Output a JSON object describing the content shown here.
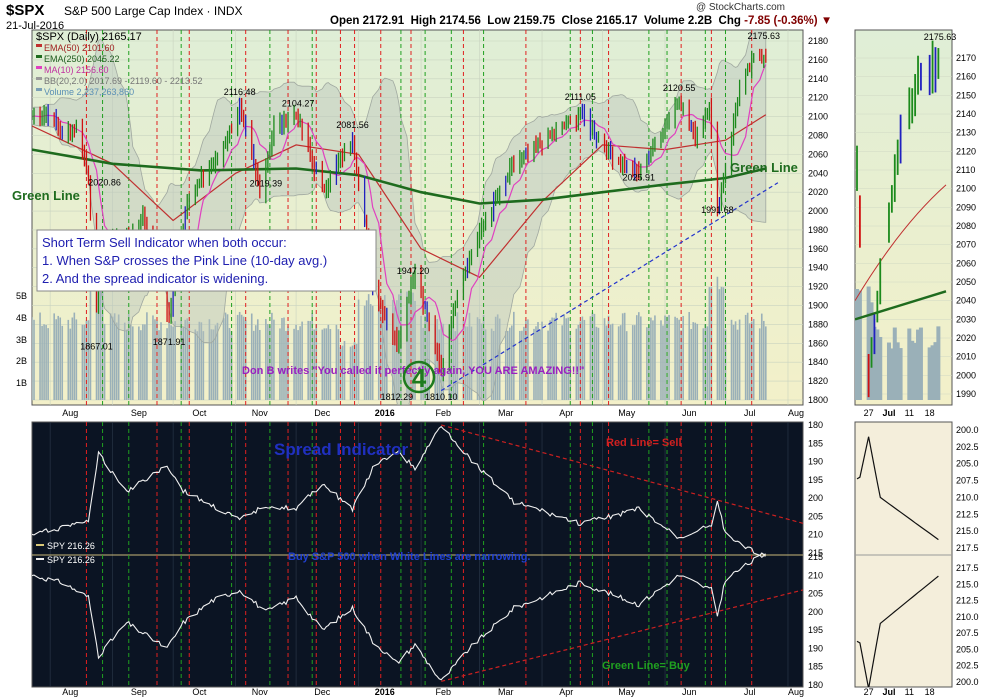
{
  "header": {
    "symbol": "$SPX",
    "name": "S&P 500 Large Cap Index",
    "exchange": "INDX",
    "date": "21-Jul-2016",
    "open_label": "Open",
    "open": "2172.91",
    "high_label": "High",
    "high": "2174.56",
    "low_label": "Low",
    "low": "2159.75",
    "close_label": "Close",
    "close": "2165.17",
    "volume_label": "Volume",
    "volume": "2.2B",
    "chg_label": "Chg",
    "chg": "-7.85 (-0.36%)",
    "watermark": "@ StockCharts.com"
  },
  "legend": {
    "main": "$SPX (Daily) 2165.17",
    "ema50": "EMA(50) 2101.60",
    "ema250": "EMA(250) 2045.22",
    "ma10": "MA(10) 2156.60",
    "bb": "BB(20,2.0) 2017.69 - 2119.60 - 2213.52",
    "volume": "Volume 2,237,263,860",
    "spy1": "SPY 216.26",
    "spy2": "SPY 216.26"
  },
  "annotations": {
    "green_line_left": "Green Line",
    "green_line_right": "Green Line",
    "box_line1": "Short Term Sell Indicator when both occur:",
    "box_line2": "1.  When S&P crosses the Pink Line (10-day avg.)",
    "box_line3": "2.  And the spread indicator is widening.",
    "don_b": "Don B writes \"You called it perfectly again, YOU ARE AMAZING!!\"",
    "circle_number": "4",
    "spread_title": "Spread Indicator",
    "red_line_sell": "Red Line= Sell",
    "buy_note": "Buy S&P 500 when White Lines are narrowing.",
    "green_line_buy": "Green Line= Buy"
  },
  "colors": {
    "main_bg": "#e7f0d2",
    "spread_bg": "#0b1423",
    "green_line": "#1e6b1e",
    "pink_line": "#e040c0",
    "ema50": "#c03030",
    "up_bar": "#1c8a1c",
    "down_bar": "#d01010",
    "blue_bar": "#2020c0",
    "volume": "#9ab0b8",
    "bb_fill": "#b8c4bc",
    "trend_blue": "#2233cc",
    "trend_red": "#cc2020",
    "annot_purple": "#9a20c0",
    "annot_blue": "#2020c0"
  },
  "chart_data": [
    {
      "type": "line",
      "panel": "price",
      "title": "$SPX (Daily) 2165.17",
      "series_kind": "OHLC bars, EMA(50), EMA(250), MA(10), BB(20,2.0), Volume",
      "ylim": [
        1790,
        2190
      ],
      "y_ticks": [
        1800,
        1820,
        1840,
        1860,
        1880,
        1900,
        1920,
        1940,
        1960,
        1980,
        2000,
        2020,
        2040,
        2060,
        2080,
        2100,
        2120,
        2140,
        2160,
        2180
      ],
      "volume_ticks": [
        "1B",
        "2B",
        "3B",
        "4B",
        "5B"
      ],
      "x_labels": [
        "Aug",
        "Sep",
        "Oct",
        "Nov",
        "Dec",
        "2016",
        "Feb",
        "Mar",
        "Apr",
        "May",
        "Jun",
        "Jul",
        "Aug"
      ],
      "close_path": [
        {
          "d": "2015-07-23",
          "c": 2100
        },
        {
          "d": "2015-07-31",
          "c": 2105
        },
        {
          "d": "2015-08-07",
          "c": 2078
        },
        {
          "d": "2015-08-14",
          "c": 2092
        },
        {
          "d": "2015-08-20",
          "c": 2035
        },
        {
          "d": "2015-08-24",
          "c": 1893
        },
        {
          "d": "2015-08-26",
          "c": 1940
        },
        {
          "d": "2015-08-31",
          "c": 1972
        },
        {
          "d": "2015-09-08",
          "c": 1969
        },
        {
          "d": "2015-09-16",
          "c": 1995
        },
        {
          "d": "2015-09-25",
          "c": 1931
        },
        {
          "d": "2015-09-29",
          "c": 1884
        },
        {
          "d": "2015-10-08",
          "c": 2013
        },
        {
          "d": "2015-10-22",
          "c": 2052
        },
        {
          "d": "2015-11-03",
          "c": 2109
        },
        {
          "d": "2015-11-13",
          "c": 2023
        },
        {
          "d": "2015-11-20",
          "c": 2089
        },
        {
          "d": "2015-12-01",
          "c": 2102
        },
        {
          "d": "2015-12-14",
          "c": 2021
        },
        {
          "d": "2015-12-29",
          "c": 2078
        },
        {
          "d": "2016-01-08",
          "c": 1922
        },
        {
          "d": "2016-01-20",
          "c": 1859
        },
        {
          "d": "2016-01-29",
          "c": 1940
        },
        {
          "d": "2016-02-11",
          "c": 1829
        },
        {
          "d": "2016-02-19",
          "c": 1917
        },
        {
          "d": "2016-03-01",
          "c": 1978
        },
        {
          "d": "2016-03-18",
          "c": 2049
        },
        {
          "d": "2016-04-01",
          "c": 2073
        },
        {
          "d": "2016-04-20",
          "c": 2102
        },
        {
          "d": "2016-05-06",
          "c": 2057
        },
        {
          "d": "2016-05-19",
          "c": 2040
        },
        {
          "d": "2016-06-08",
          "c": 2119
        },
        {
          "d": "2016-06-16",
          "c": 2077
        },
        {
          "d": "2016-06-23",
          "c": 2113
        },
        {
          "d": "2016-06-27",
          "c": 2000
        },
        {
          "d": "2016-07-08",
          "c": 2130
        },
        {
          "d": "2016-07-15",
          "c": 2161
        },
        {
          "d": "2016-07-21",
          "c": 2165
        }
      ],
      "ema250": [
        {
          "d": "2015-07-23",
          "v": 2065
        },
        {
          "d": "2015-09-01",
          "v": 2050
        },
        {
          "d": "2015-10-15",
          "v": 2043
        },
        {
          "d": "2015-12-01",
          "v": 2045
        },
        {
          "d": "2016-01-01",
          "v": 2038
        },
        {
          "d": "2016-02-01",
          "v": 2020
        },
        {
          "d": "2016-03-01",
          "v": 2008
        },
        {
          "d": "2016-04-01",
          "v": 2012
        },
        {
          "d": "2016-05-01",
          "v": 2020
        },
        {
          "d": "2016-06-01",
          "v": 2028
        },
        {
          "d": "2016-07-01",
          "v": 2035
        },
        {
          "d": "2016-07-21",
          "v": 2045
        }
      ],
      "ema50": [
        {
          "d": "2015-07-23",
          "v": 2090
        },
        {
          "d": "2015-09-01",
          "v": 2050
        },
        {
          "d": "2015-10-01",
          "v": 1990
        },
        {
          "d": "2015-11-01",
          "v": 2040
        },
        {
          "d": "2015-12-01",
          "v": 2070
        },
        {
          "d": "2016-01-01",
          "v": 2060
        },
        {
          "d": "2016-02-01",
          "v": 1960
        },
        {
          "d": "2016-03-01",
          "v": 1930
        },
        {
          "d": "2016-04-01",
          "v": 2010
        },
        {
          "d": "2016-05-01",
          "v": 2070
        },
        {
          "d": "2016-06-01",
          "v": 2065
        },
        {
          "d": "2016-07-01",
          "v": 2075
        },
        {
          "d": "2016-07-21",
          "v": 2102
        }
      ],
      "labels": [
        {
          "d": "2015-08-24",
          "v": 1867.01,
          "t": "1867.01"
        },
        {
          "d": "2015-08-28",
          "v": 2020.86,
          "t": "2020.86"
        },
        {
          "d": "2015-09-29",
          "v": 1871.91,
          "t": "1871.91"
        },
        {
          "d": "2015-11-03",
          "v": 2116.48,
          "t": "2116.48"
        },
        {
          "d": "2015-11-16",
          "v": 2019.39,
          "t": "2019.39"
        },
        {
          "d": "2015-12-02",
          "v": 2104.27,
          "t": "2104.27"
        },
        {
          "d": "2015-12-29",
          "v": 2081.56,
          "t": "2081.56"
        },
        {
          "d": "2016-01-28",
          "v": 1947.2,
          "t": "1947.20"
        },
        {
          "d": "2016-01-20",
          "v": 1812.29,
          "t": "1812.29"
        },
        {
          "d": "2016-02-11",
          "v": 1810.1,
          "t": "1810.10"
        },
        {
          "d": "2016-04-20",
          "v": 2111.05,
          "t": "2111.05"
        },
        {
          "d": "2016-05-19",
          "v": 2025.91,
          "t": "2025.91"
        },
        {
          "d": "2016-06-08",
          "v": 2120.55,
          "t": "2120.55"
        },
        {
          "d": "2016-06-27",
          "v": 1991.68,
          "t": "1991.68"
        },
        {
          "d": "2016-07-20",
          "v": 2175.63,
          "t": "2175.63"
        }
      ],
      "signals_green": [
        "2015-08-27",
        "2015-09-09",
        "2015-10-05",
        "2015-10-30",
        "2015-11-18",
        "2015-12-09",
        "2016-01-22",
        "2016-02-03",
        "2016-02-16",
        "2016-03-03",
        "2016-04-15",
        "2016-04-26",
        "2016-05-24",
        "2016-06-02",
        "2016-06-21",
        "2016-07-01"
      ],
      "signals_red": [
        "2015-08-19",
        "2015-09-23",
        "2015-10-09",
        "2015-11-06",
        "2015-11-27",
        "2015-12-11",
        "2015-12-23",
        "2015-12-30",
        "2016-01-12",
        "2016-01-27",
        "2016-02-22",
        "2016-03-24",
        "2016-04-20",
        "2016-05-04",
        "2016-06-09",
        "2016-06-24",
        "2016-07-14"
      ]
    },
    {
      "type": "line",
      "panel": "spread",
      "title": "Spread Indicator",
      "series": [
        {
          "name": "SPY 216.26",
          "scale": "reversed",
          "values": [
            {
              "d": "2015-07-23",
              "v": 210
            },
            {
              "d": "2015-08-07",
              "v": 208
            },
            {
              "d": "2015-08-20",
              "v": 206
            },
            {
              "d": "2015-08-25",
              "v": 188
            },
            {
              "d": "2015-09-08",
              "v": 198
            },
            {
              "d": "2015-09-28",
              "v": 191
            },
            {
              "d": "2015-10-06",
              "v": 198
            },
            {
              "d": "2015-10-20",
              "v": 202
            },
            {
              "d": "2015-11-03",
              "v": 206
            },
            {
              "d": "2015-11-16",
              "v": 202
            },
            {
              "d": "2015-12-01",
              "v": 203
            },
            {
              "d": "2015-12-14",
              "v": 196
            },
            {
              "d": "2015-12-29",
              "v": 203
            },
            {
              "d": "2016-01-08",
              "v": 192
            },
            {
              "d": "2016-01-20",
              "v": 187
            },
            {
              "d": "2016-01-29",
              "v": 192
            },
            {
              "d": "2016-02-11",
              "v": 180
            },
            {
              "d": "2016-02-25",
              "v": 189
            },
            {
              "d": "2016-03-18",
              "v": 201
            },
            {
              "d": "2016-04-20",
              "v": 207
            },
            {
              "d": "2016-05-19",
              "v": 203
            },
            {
              "d": "2016-06-08",
              "v": 211
            },
            {
              "d": "2016-06-24",
              "v": 207
            },
            {
              "d": "2016-06-27",
              "v": 201
            },
            {
              "d": "2016-07-01",
              "v": 210
            },
            {
              "d": "2016-07-21",
              "v": 216.26
            }
          ]
        },
        {
          "name": "SPY 216.26",
          "scale": "normal",
          "values": [
            {
              "d": "2015-07-23",
              "v": 210
            },
            {
              "d": "2015-08-07",
              "v": 208
            },
            {
              "d": "2015-08-20",
              "v": 204
            },
            {
              "d": "2015-08-25",
              "v": 188
            },
            {
              "d": "2015-09-08",
              "v": 197
            },
            {
              "d": "2015-09-28",
              "v": 190
            },
            {
              "d": "2015-10-06",
              "v": 197
            },
            {
              "d": "2015-10-20",
              "v": 203
            },
            {
              "d": "2015-11-03",
              "v": 206
            },
            {
              "d": "2015-11-16",
              "v": 200
            },
            {
              "d": "2015-12-01",
              "v": 204
            },
            {
              "d": "2015-12-14",
              "v": 195
            },
            {
              "d": "2015-12-29",
              "v": 201
            },
            {
              "d": "2016-01-08",
              "v": 192
            },
            {
              "d": "2016-01-20",
              "v": 186
            },
            {
              "d": "2016-01-29",
              "v": 191
            },
            {
              "d": "2016-02-11",
              "v": 181
            },
            {
              "d": "2016-02-25",
              "v": 190
            },
            {
              "d": "2016-03-18",
              "v": 201
            },
            {
              "d": "2016-04-20",
              "v": 208
            },
            {
              "d": "2016-05-19",
              "v": 202
            },
            {
              "d": "2016-06-08",
              "v": 210
            },
            {
              "d": "2016-06-24",
              "v": 206
            },
            {
              "d": "2016-06-27",
              "v": 199
            },
            {
              "d": "2016-07-01",
              "v": 209
            },
            {
              "d": "2016-07-21",
              "v": 216.26
            }
          ]
        }
      ],
      "upper_ticks": [
        180,
        185,
        190,
        195,
        200,
        205,
        210,
        215
      ],
      "lower_ticks": [
        180,
        185,
        190,
        195,
        200,
        205,
        210,
        215
      ],
      "x_labels": [
        "Aug",
        "Sep",
        "Oct",
        "Nov",
        "Dec",
        "2016",
        "Feb",
        "Mar",
        "Apr",
        "May",
        "Jun",
        "Jul",
        "Aug"
      ]
    },
    {
      "type": "line",
      "panel": "zoom",
      "y_ticks": [
        1990,
        2000,
        2010,
        2020,
        2030,
        2040,
        2050,
        2060,
        2070,
        2080,
        2090,
        2100,
        2110,
        2120,
        2130,
        2140,
        2150,
        2160,
        2170
      ],
      "top_label": "2175.63",
      "upper_ticks": [
        200.0,
        202.5,
        205.0,
        207.5,
        210.0,
        212.5,
        215.0,
        217.5
      ],
      "lower_ticks": [
        200.0,
        202.5,
        205.0,
        207.5,
        210.0,
        212.5,
        215.0,
        217.5
      ],
      "x_labels": [
        "27",
        "Jul",
        "11",
        "18"
      ]
    }
  ]
}
